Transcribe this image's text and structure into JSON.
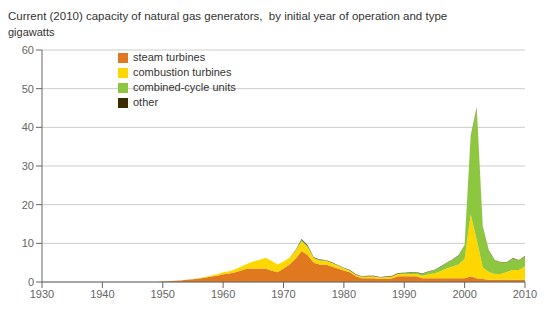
{
  "chart_data": {
    "type": "area",
    "stacked": true,
    "title": "Current (2010) capacity of natural gas generators,  by initial year of operation and type",
    "y_label": "gigawatts",
    "x": [
      1930,
      1931,
      1932,
      1933,
      1934,
      1935,
      1936,
      1937,
      1938,
      1939,
      1940,
      1941,
      1942,
      1943,
      1944,
      1945,
      1946,
      1947,
      1948,
      1949,
      1950,
      1951,
      1952,
      1953,
      1954,
      1955,
      1956,
      1957,
      1958,
      1959,
      1960,
      1961,
      1962,
      1963,
      1964,
      1965,
      1966,
      1967,
      1968,
      1969,
      1970,
      1971,
      1972,
      1973,
      1974,
      1975,
      1976,
      1977,
      1978,
      1979,
      1980,
      1981,
      1982,
      1983,
      1984,
      1985,
      1986,
      1987,
      1988,
      1989,
      1990,
      1991,
      1992,
      1993,
      1994,
      1995,
      1996,
      1997,
      1998,
      1999,
      2000,
      2001,
      2002,
      2003,
      2004,
      2005,
      2006,
      2007,
      2008,
      2009,
      2010
    ],
    "series": [
      {
        "name": "steam turbines",
        "color": "#e07820",
        "values": [
          0,
          0,
          0,
          0,
          0,
          0,
          0,
          0,
          0,
          0,
          0,
          0,
          0,
          0,
          0,
          0,
          0,
          0,
          0,
          0,
          0.1,
          0.2,
          0.3,
          0.4,
          0.6,
          0.7,
          0.9,
          1.1,
          1.4,
          1.6,
          2.0,
          2.2,
          2.5,
          3.0,
          3.5,
          3.5,
          3.5,
          3.5,
          3.0,
          2.5,
          3.5,
          4.5,
          6.0,
          8.0,
          7.0,
          5.0,
          4.5,
          4.5,
          4.0,
          3.5,
          3.0,
          2.5,
          1.5,
          1.0,
          1.0,
          1.0,
          0.8,
          0.8,
          1.0,
          1.5,
          1.5,
          1.5,
          1.5,
          1.0,
          1.0,
          1.0,
          1.0,
          1.0,
          1.0,
          1.0,
          1.0,
          1.5,
          1.0,
          0.8,
          0.6,
          0.6,
          0.6,
          0.6,
          0.6,
          0.6,
          0.6
        ]
      },
      {
        "name": "combustion turbines",
        "color": "#ffd700",
        "values": [
          0,
          0,
          0,
          0,
          0,
          0,
          0,
          0,
          0,
          0,
          0,
          0,
          0,
          0,
          0,
          0,
          0,
          0,
          0,
          0,
          0,
          0,
          0,
          0,
          0,
          0.1,
          0.1,
          0.2,
          0.3,
          0.4,
          0.5,
          0.6,
          0.8,
          1.0,
          1.2,
          1.8,
          2.2,
          2.8,
          2.5,
          2.0,
          1.8,
          1.8,
          2.0,
          2.5,
          2.0,
          1.2,
          1.0,
          1.0,
          0.9,
          0.7,
          0.5,
          0.4,
          0.3,
          0.3,
          0.4,
          0.4,
          0.3,
          0.4,
          0.4,
          0.6,
          0.6,
          0.6,
          0.6,
          0.6,
          1.0,
          1.2,
          1.8,
          2.5,
          3.0,
          3.5,
          5.0,
          16.0,
          10.0,
          3.0,
          2.0,
          1.5,
          1.5,
          2.0,
          2.5,
          2.5,
          3.5
        ]
      },
      {
        "name": "combined-cycle units",
        "color": "#8dc63f",
        "values": [
          0,
          0,
          0,
          0,
          0,
          0,
          0,
          0,
          0,
          0,
          0,
          0,
          0,
          0,
          0,
          0,
          0,
          0,
          0,
          0,
          0,
          0,
          0,
          0,
          0,
          0,
          0,
          0,
          0,
          0,
          0,
          0,
          0,
          0,
          0,
          0,
          0,
          0,
          0,
          0,
          0,
          0,
          0.2,
          0.4,
          0.3,
          0.1,
          0.2,
          0.1,
          0.1,
          0.1,
          0.1,
          0.1,
          0.1,
          0.1,
          0.1,
          0.1,
          0.1,
          0.1,
          0.1,
          0.1,
          0.2,
          0.3,
          0.4,
          0.5,
          0.7,
          0.9,
          1.1,
          1.4,
          1.8,
          2.3,
          3.5,
          20.0,
          34.0,
          10.5,
          5.5,
          3.5,
          3.0,
          2.5,
          3.0,
          2.5,
          2.5
        ]
      },
      {
        "name": "other",
        "color": "#3d2b00",
        "values": [
          0,
          0,
          0,
          0,
          0,
          0,
          0,
          0,
          0,
          0,
          0,
          0,
          0,
          0,
          0,
          0,
          0,
          0,
          0,
          0,
          0,
          0,
          0,
          0,
          0,
          0,
          0,
          0,
          0,
          0,
          0,
          0,
          0,
          0,
          0,
          0,
          0,
          0,
          0,
          0,
          0,
          0,
          0.1,
          0.2,
          0.2,
          0.1,
          0.1,
          0.1,
          0.1,
          0.1,
          0.1,
          0.1,
          0.1,
          0.1,
          0.1,
          0.1,
          0.1,
          0.1,
          0.1,
          0.1,
          0.1,
          0.1,
          0.1,
          0.1,
          0.1,
          0.1,
          0.1,
          0.1,
          0.1,
          0.1,
          0.1,
          0.2,
          0.2,
          0.1,
          0.1,
          0.1,
          0.1,
          0.1,
          0.1,
          0.1,
          0.1
        ]
      }
    ],
    "xlim": [
      1930,
      2010
    ],
    "ylim": [
      0,
      60
    ],
    "xticks": [
      1930,
      1940,
      1950,
      1960,
      1970,
      1980,
      1990,
      2000,
      2010
    ],
    "yticks": [
      0,
      10,
      20,
      30,
      40,
      50,
      60
    ],
    "grid": true,
    "legend": "upper left"
  }
}
